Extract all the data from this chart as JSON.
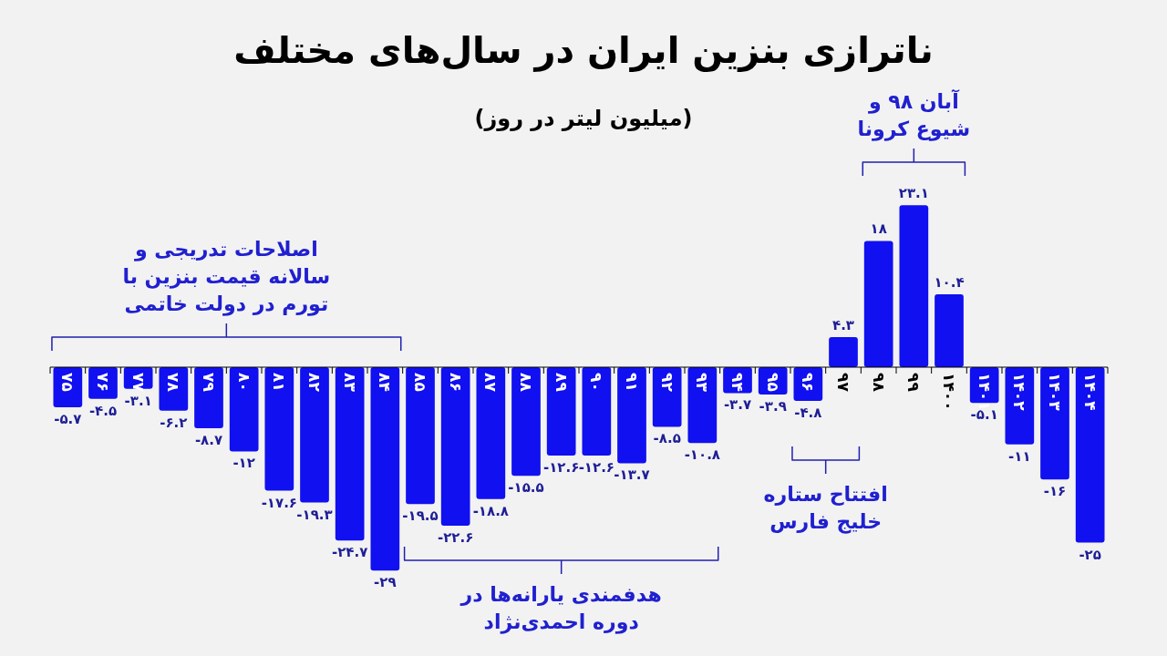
{
  "chart_data": {
    "type": "bar",
    "title": "ناترازی بنزین ایران در سال‌های مختلف",
    "subtitle": "(میلیون لیتر در روز)",
    "categories": [
      "۷۵",
      "۷۶",
      "۷۷",
      "۷۸",
      "۷۹",
      "۸۰",
      "۸۱",
      "۸۲",
      "۸۳",
      "۸۴",
      "۸۵",
      "۸۶",
      "۸۷",
      "۸۸",
      "۸۹",
      "۹۰",
      "۹۱",
      "۹۲",
      "۹۳",
      "۹۴",
      "۹۵",
      "۹۶",
      "۹۷",
      "۹۸",
      "۹۹",
      "۱۴۰۰",
      "۱۴۰۱",
      "۱۴۰۲",
      "۱۴۰۳",
      "۱۴۰۴"
    ],
    "values": [
      -5.7,
      -4.5,
      -3.1,
      -6.2,
      -8.7,
      -12,
      -17.6,
      -19.3,
      -24.7,
      -29,
      -19.5,
      -22.6,
      -18.8,
      -15.5,
      -12.6,
      -12.6,
      -13.7,
      -8.5,
      -10.8,
      -3.7,
      -3.9,
      -4.8,
      4.3,
      18,
      23.1,
      10.4,
      -5.1,
      -11,
      -16,
      -25
    ],
    "value_labels": [
      "-۵.۷",
      "-۴.۵",
      "-۳.۱",
      "-۶.۲",
      "-۸.۷",
      "-۱۲",
      "-۱۷.۶",
      "-۱۹.۳",
      "-۲۴.۷",
      "-۲۹",
      "-۱۹.۵",
      "-۲۲.۶",
      "-۱۸.۸",
      "-۱۵.۵",
      "-۱۲.۶",
      "-۱۲.۶",
      "-۱۳.۷",
      "-۸.۵",
      "-۱۰.۸",
      "-۳.۷",
      "-۳.۹",
      "-۴.۸",
      "۴.۳",
      "۱۸",
      "۲۳.۱",
      "۱۰.۴",
      "-۵.۱",
      "-۱۱",
      "-۱۶",
      "-۲۵"
    ],
    "color": "#1010f0",
    "annotations": [
      "اصلاحات تدریجی و سالانه قیمت بنزین با تورم در دولت خاتمی",
      "هدفمندی یارانه‌ها در دوره احمدی‌نژاد",
      "افتتاح ستاره خلیج فارس",
      "آبان ۹۸ و شیوع کرونا"
    ]
  }
}
